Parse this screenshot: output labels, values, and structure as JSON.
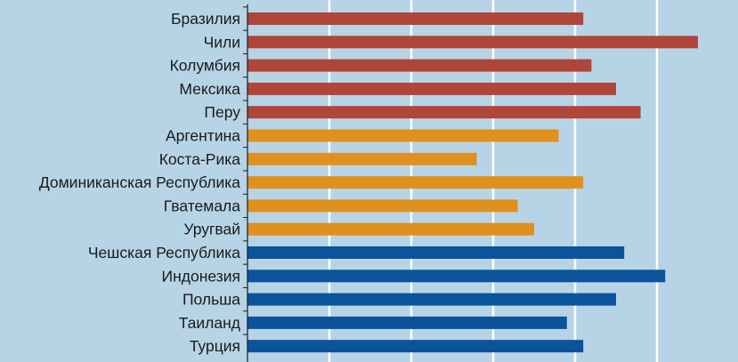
{
  "chart_data": {
    "type": "bar",
    "orientation": "horizontal",
    "categories": [
      "Бразилия",
      "Чили",
      "Колумбия",
      "Мексика",
      "Перу",
      "Аргентина",
      "Коста-Рика",
      "Доминиканская Республика",
      "Гватемала",
      "Уругвай",
      "Чешская Республика",
      "Индонезия",
      "Польша",
      "Таиланд",
      "Турция"
    ],
    "values": [
      41,
      55,
      42,
      45,
      48,
      38,
      28,
      41,
      33,
      35,
      46,
      51,
      45,
      39,
      41
    ],
    "groups": [
      0,
      0,
      0,
      0,
      0,
      1,
      1,
      1,
      1,
      1,
      2,
      2,
      2,
      2,
      2
    ],
    "group_colors": [
      "#b0453a",
      "#e0901f",
      "#0b539b"
    ],
    "xlim": [
      0,
      60
    ],
    "x_gridlines": [
      10,
      20,
      30,
      40,
      50
    ],
    "grid": true,
    "title": "",
    "xlabel": "",
    "ylabel": ""
  }
}
